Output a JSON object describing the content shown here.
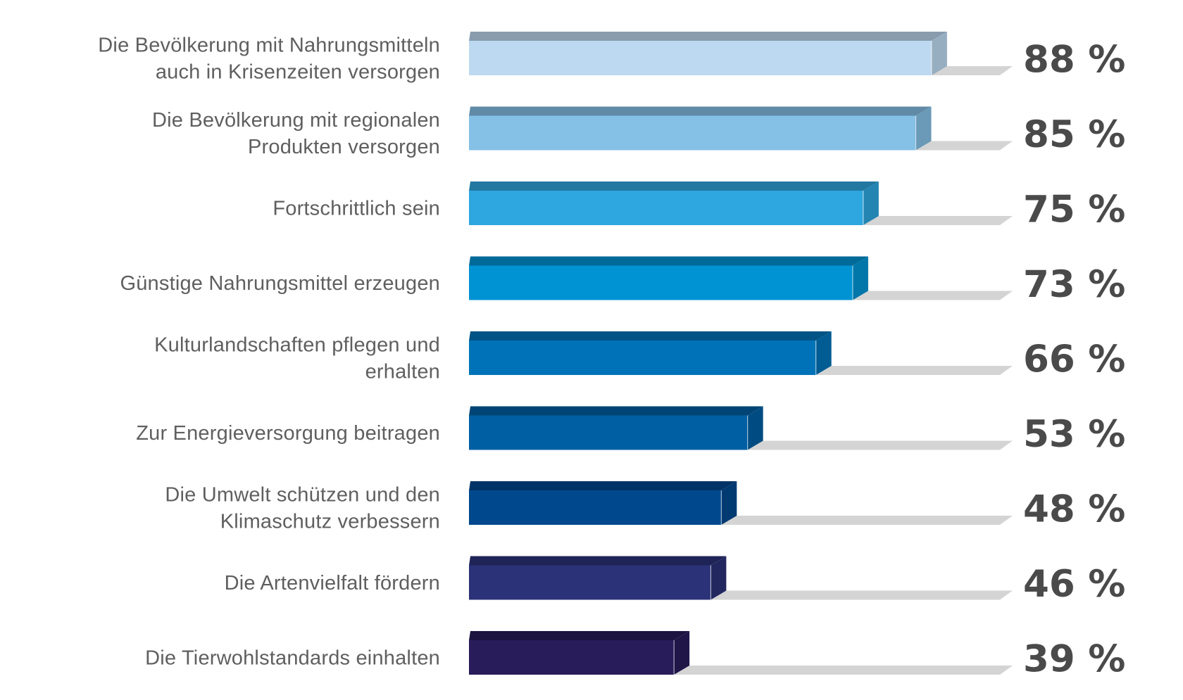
{
  "chart_data": {
    "type": "bar",
    "orientation": "horizontal",
    "style": "3d",
    "title": "",
    "xlabel": "",
    "ylabel": "",
    "xlim": [
      0,
      100
    ],
    "unit": "%",
    "grid": false,
    "legend": "none",
    "categories": [
      [
        "Die Bevölkerung mit Nahrungsmitteln",
        "auch in Krisenzeiten versorgen"
      ],
      [
        "Die Bevölkerung mit regionalen",
        "Produkten versorgen"
      ],
      [
        "Fortschrittlich sein"
      ],
      [
        "Günstige Nahrungsmittel erzeugen"
      ],
      [
        "Kulturlandschaften pflegen und",
        "erhalten"
      ],
      [
        "Zur Energieversorgung beitragen"
      ],
      [
        "Die Umwelt schützen und den",
        "Klimaschutz verbessern"
      ],
      [
        "Die Artenvielfalt fördern"
      ],
      [
        "Die Tierwohlstandards einhalten"
      ]
    ],
    "values": [
      88,
      85,
      75,
      73,
      66,
      53,
      48,
      46,
      39
    ],
    "value_labels": [
      "88 %",
      "85 %",
      "75 %",
      "73 %",
      "66 %",
      "53 %",
      "48 %",
      "46 %",
      "39 %"
    ],
    "colors": [
      "#bdd9f1",
      "#85c0e6",
      "#2ea6df",
      "#0093d3",
      "#0073b8",
      "#005fa3",
      "#00488d",
      "#2b3277",
      "#281c5a"
    ],
    "shadow_color": "#d4d4d4",
    "label_color": "#5f5f5f",
    "value_color": "#4a4a4a"
  }
}
